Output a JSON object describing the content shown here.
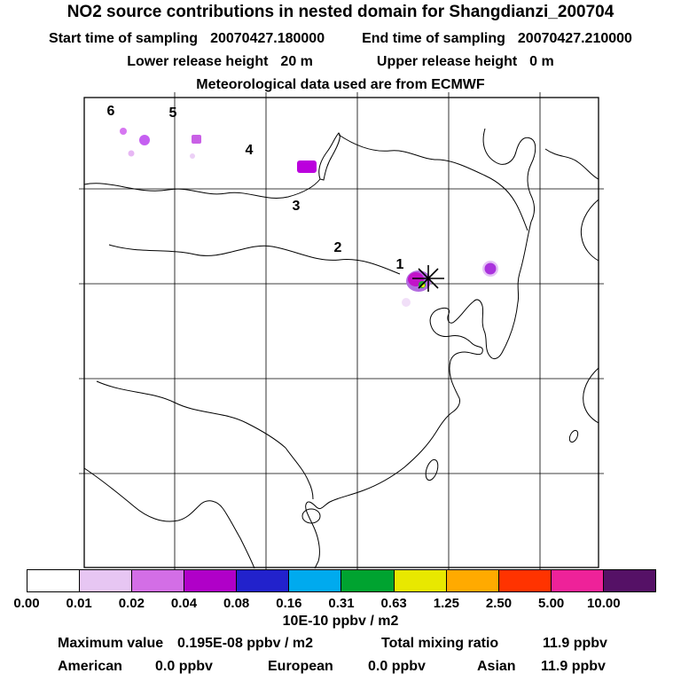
{
  "header": {
    "title": "NO2 source contributions in nested domain for Shangdianzi_200704",
    "sampling": {
      "start_label": "Start time of sampling",
      "start_value": "20070427.180000",
      "end_label": "End time of sampling",
      "end_value": "20070427.210000"
    },
    "release": {
      "lower_label": "Lower release height",
      "lower_value": "20 m",
      "upper_label": "Upper release height",
      "upper_value": "0 m"
    },
    "met_source": "Meteorological data used are from ECMWF"
  },
  "map": {
    "trajectory_labels": [
      {
        "text": "1"
      },
      {
        "text": "2"
      },
      {
        "text": "3"
      },
      {
        "text": "4"
      },
      {
        "text": "5"
      },
      {
        "text": "6"
      }
    ],
    "receptor_marker": "star at Shangdianzi receptor"
  },
  "colorbar": {
    "tick_labels": [
      "0.00",
      "0.01",
      "0.02",
      "0.04",
      "0.08",
      "0.16",
      "0.31",
      "0.63",
      "1.25",
      "2.50",
      "5.00",
      "10.00"
    ],
    "colors": [
      "#ffffff",
      "#e7c6f3",
      "#d36ee6",
      "#b000c8",
      "#2222cc",
      "#00aaee",
      "#00a330",
      "#e8e800",
      "#ffaa00",
      "#ff3300",
      "#ee2299",
      "#551166"
    ],
    "units": "10E-10 ppbv / m2"
  },
  "footer": {
    "max_label": "Maximum value",
    "max_value": "0.195E-08 ppbv / m2",
    "total_label": "Total mixing ratio",
    "total_value": "11.9 ppbv",
    "regions": [
      {
        "label": "American",
        "value": "0.0 ppbv"
      },
      {
        "label": "European",
        "value": "0.0 ppbv"
      },
      {
        "label": "Asian",
        "value": "11.9 ppbv"
      }
    ]
  }
}
